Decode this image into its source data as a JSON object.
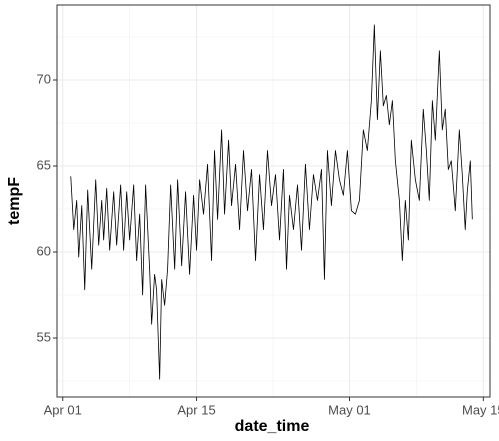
{
  "chart_data": {
    "type": "line",
    "x_label": "date_time",
    "y_label": "tempF",
    "xlim": [
      -0.6,
      44.7
    ],
    "ylim": [
      51.57,
      74.36
    ],
    "xticks": [
      {
        "value": 0,
        "label": "Apr 01"
      },
      {
        "value": 14,
        "label": "Apr 15"
      },
      {
        "value": 30,
        "label": "May 01"
      },
      {
        "value": 44,
        "label": "May 15"
      }
    ],
    "yticks": [
      55,
      60,
      65,
      70
    ],
    "xminor": [
      7,
      22,
      37
    ],
    "yminor": [
      52.5,
      57.5,
      62.5,
      67.5,
      72.5
    ],
    "grid": true,
    "series": [
      {
        "color": "#000000",
        "x": [
          0.84,
          1.15,
          1.46,
          1.67,
          1.99,
          2.3,
          2.61,
          3.03,
          3.45,
          3.76,
          4.08,
          4.28,
          4.6,
          4.91,
          5.33,
          5.64,
          6.06,
          6.37,
          6.69,
          7.0,
          7.42,
          7.73,
          8.05,
          8.36,
          8.67,
          9.09,
          9.3,
          9.61,
          9.82,
          10.14,
          10.35,
          10.66,
          10.97,
          11.29,
          11.71,
          12.02,
          12.44,
          12.85,
          13.27,
          13.69,
          14.0,
          14.32,
          14.73,
          15.15,
          15.57,
          15.88,
          16.2,
          16.62,
          16.93,
          17.35,
          17.66,
          18.08,
          18.5,
          18.91,
          19.33,
          19.75,
          20.17,
          20.59,
          21.0,
          21.42,
          21.84,
          22.26,
          22.68,
          23.09,
          23.41,
          23.72,
          24.14,
          24.56,
          24.98,
          25.39,
          25.81,
          26.23,
          26.65,
          27.07,
          27.38,
          27.69,
          28.11,
          28.53,
          28.95,
          29.36,
          29.78,
          30.2,
          30.62,
          31.04,
          31.45,
          31.87,
          32.29,
          32.6,
          32.92,
          33.23,
          33.54,
          33.86,
          34.17,
          34.49,
          34.8,
          35.22,
          35.53,
          35.84,
          36.16,
          36.47,
          36.89,
          37.31,
          37.72,
          38.04,
          38.35,
          38.67,
          38.98,
          39.4,
          39.71,
          40.02,
          40.34,
          40.65,
          41.07,
          41.49,
          41.8,
          42.11,
          42.32,
          42.64,
          42.85
        ],
        "values": [
          64.4,
          61.3,
          63,
          59.7,
          62.7,
          57.8,
          63.6,
          59,
          64.2,
          60.4,
          63,
          60.7,
          63.7,
          60.1,
          63.5,
          60.4,
          63.9,
          60.1,
          63.5,
          60.7,
          63.9,
          59.5,
          62.2,
          57.5,
          63.9,
          59,
          55.8,
          58.7,
          57.8,
          52.6,
          58.4,
          56.9,
          59,
          63.9,
          59,
          64.2,
          59.2,
          63.5,
          58.7,
          63.3,
          60.1,
          64.2,
          62.2,
          65.1,
          59.5,
          65.9,
          61.9,
          67.1,
          62.2,
          66.5,
          62.7,
          65.1,
          61.3,
          65.9,
          62.4,
          64.8,
          59.5,
          64.5,
          61.3,
          65.9,
          62.7,
          64.5,
          60.7,
          64.8,
          59,
          63.3,
          61.3,
          63.9,
          60.1,
          65.1,
          61.3,
          64.5,
          63,
          64.8,
          58.4,
          65.9,
          62.7,
          65.9,
          64.2,
          63.3,
          65.9,
          62.4,
          62.2,
          63,
          67.1,
          65.9,
          68.8,
          73.2,
          67.7,
          71.7,
          68.5,
          69.1,
          67.4,
          68.8,
          65.3,
          63,
          59.5,
          63,
          60.7,
          66.5,
          64.2,
          63,
          68.3,
          65.9,
          63,
          68.8,
          66.5,
          71.7,
          67.1,
          68.3,
          64.8,
          65.3,
          62.4,
          67.1,
          64.5,
          61.3,
          63.5,
          65.3,
          61.9
        ]
      }
    ]
  }
}
